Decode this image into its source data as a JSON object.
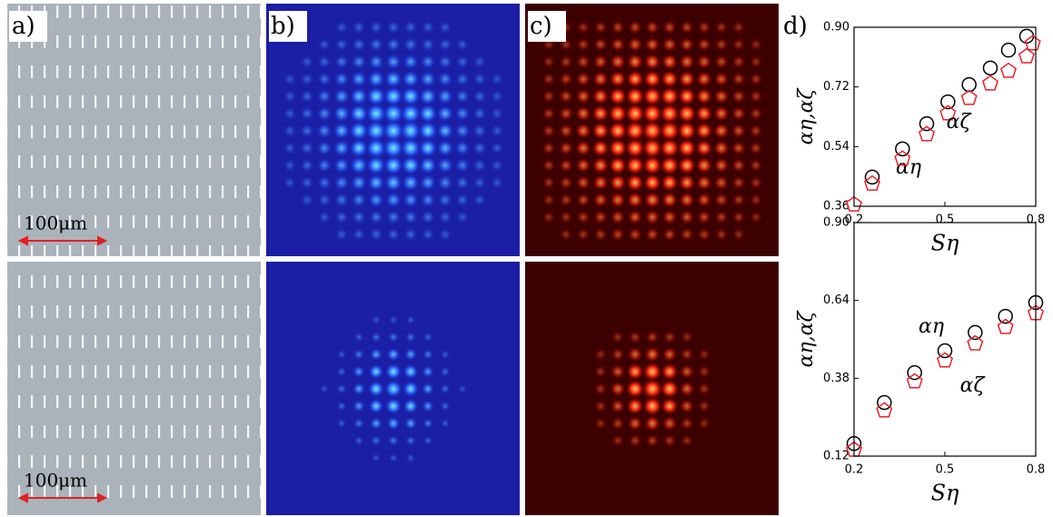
{
  "figure": {
    "panel_labels": [
      "a)",
      "b)",
      "c)",
      "d)"
    ],
    "scale_bar_labels": [
      "100μm",
      "100μm"
    ]
  },
  "chart_data": [
    {
      "type": "scatter",
      "x_label": "Sη",
      "y_label": "αη,αζ",
      "xlim": [
        0.2,
        0.8
      ],
      "xticks": [
        0.2,
        0.5,
        0.8
      ],
      "ylim": [
        0.36,
        0.9
      ],
      "yticks": [
        0.36,
        0.54,
        0.72,
        {
          "value": 0.9,
          "label": "0.90"
        }
      ],
      "series": [
        {
          "name": "αη",
          "color": "#000000",
          "marker": "circle",
          "x": [
            0.26,
            0.36,
            0.44,
            0.51,
            0.58,
            0.65,
            0.71,
            0.77
          ],
          "values": [
            0.448,
            0.533,
            0.609,
            0.675,
            0.727,
            0.777,
            0.831,
            0.873
          ]
        },
        {
          "name": "αζ",
          "color": "#e8202a",
          "marker": "pentagon",
          "x": [
            0.2,
            0.26,
            0.36,
            0.44,
            0.51,
            0.58,
            0.65,
            0.71,
            0.77,
            0.79
          ],
          "values": [
            0.365,
            0.428,
            0.503,
            0.577,
            0.64,
            0.686,
            0.73,
            0.768,
            0.812,
            0.851
          ]
        }
      ]
    },
    {
      "type": "scatter",
      "x_label": "Sη",
      "y_label": "αη,αζ",
      "xlim": [
        0.2,
        0.8
      ],
      "xticks": [
        0.2,
        0.5,
        0.8
      ],
      "ylim": [
        0.12,
        0.9
      ],
      "yticks": [
        0.12,
        0.38,
        0.64,
        {
          "value": 0.9,
          "label": "0.90"
        }
      ],
      "series": [
        {
          "name": "αη",
          "color": "#000000",
          "marker": "circle",
          "x": [
            0.2,
            0.3,
            0.4,
            0.5,
            0.6,
            0.7,
            0.8
          ],
          "values": [
            0.162,
            0.299,
            0.399,
            0.472,
            0.533,
            0.587,
            0.633
          ]
        },
        {
          "name": "αζ",
          "color": "#e8202a",
          "marker": "pentagon",
          "x": [
            0.2,
            0.3,
            0.4,
            0.5,
            0.6,
            0.7,
            0.8
          ],
          "values": [
            0.141,
            0.272,
            0.369,
            0.439,
            0.496,
            0.551,
            0.597
          ]
        }
      ]
    }
  ]
}
